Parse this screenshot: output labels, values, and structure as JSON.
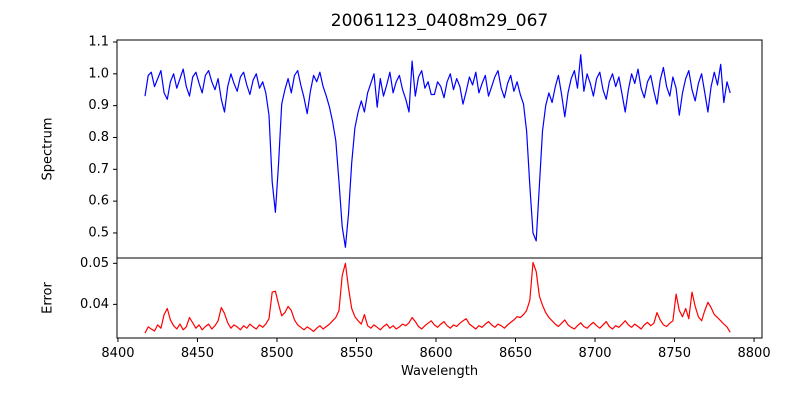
{
  "chart_data": {
    "type": "line",
    "title": "20061123_0408m29_067",
    "xlabel": "Wavelength",
    "grid": false,
    "legend": null,
    "background_color": "#ffffff",
    "axis_color": "#000000",
    "xlim": [
      8399.4,
      8805.0
    ],
    "xticks": [
      8400,
      8450,
      8500,
      8550,
      8600,
      8650,
      8700,
      8750,
      8800
    ],
    "xtick_labels": [
      "8400",
      "8450",
      "8500",
      "8550",
      "8600",
      "8650",
      "8700",
      "8750",
      "8800"
    ],
    "panels": [
      {
        "ylabel": "Spectrum",
        "ylim": [
          0.4213,
          1.1063
        ],
        "yticks": [
          0.5,
          0.6,
          0.7,
          0.8,
          0.9,
          1.0,
          1.1
        ],
        "ytick_labels": [
          "0.5",
          "0.6",
          "0.7",
          "0.8",
          "0.9",
          "1.0",
          "1.1"
        ],
        "line_color": "#0000ff",
        "series_name": "spectrum",
        "x_start": 8417,
        "x_step": 2,
        "y": [
          0.93,
          0.995,
          1.005,
          0.96,
          0.985,
          1.01,
          0.94,
          0.92,
          0.975,
          1.0,
          0.955,
          0.985,
          1.015,
          0.96,
          0.93,
          0.99,
          1.005,
          0.97,
          0.94,
          0.995,
          1.01,
          0.975,
          0.95,
          0.985,
          0.92,
          0.88,
          0.96,
          1.0,
          0.97,
          0.945,
          0.99,
          1.005,
          0.965,
          0.935,
          0.98,
          1.0,
          0.955,
          0.975,
          0.94,
          0.87,
          0.66,
          0.565,
          0.72,
          0.905,
          0.95,
          0.985,
          0.94,
          0.995,
          1.01,
          0.965,
          0.925,
          0.875,
          0.945,
          0.995,
          0.975,
          1.005,
          0.96,
          0.93,
          0.895,
          0.85,
          0.79,
          0.66,
          0.52,
          0.455,
          0.56,
          0.72,
          0.83,
          0.88,
          0.915,
          0.88,
          0.94,
          0.97,
          1.0,
          0.895,
          0.985,
          0.93,
          0.965,
          1.005,
          0.94,
          0.975,
          0.995,
          0.95,
          0.92,
          0.88,
          1.04,
          0.93,
          0.99,
          1.01,
          0.955,
          0.975,
          0.935,
          0.935,
          0.975,
          0.96,
          0.925,
          0.975,
          1.0,
          0.95,
          0.985,
          0.96,
          0.905,
          0.945,
          0.99,
          0.965,
          1.005,
          0.94,
          0.97,
          0.995,
          0.93,
          0.96,
          0.99,
          1.01,
          0.955,
          0.925,
          0.97,
          0.995,
          0.945,
          0.975,
          0.935,
          0.905,
          0.82,
          0.65,
          0.5,
          0.475,
          0.65,
          0.82,
          0.9,
          0.94,
          0.91,
          0.96,
          0.995,
          0.935,
          0.865,
          0.94,
          0.985,
          1.01,
          0.955,
          1.06,
          0.945,
          1.0,
          0.97,
          0.93,
          0.985,
          1.005,
          0.95,
          0.92,
          0.975,
          1.0,
          0.96,
          0.99,
          0.935,
          0.88,
          0.95,
          1.0,
          0.97,
          1.015,
          0.955,
          0.925,
          0.975,
          0.995,
          0.945,
          0.905,
          0.98,
          1.02,
          0.96,
          0.93,
          0.99,
          0.955,
          0.87,
          0.94,
          0.985,
          1.01,
          0.95,
          0.915,
          0.97,
          1.0,
          0.94,
          0.88,
          0.96,
          1.005,
          0.965,
          1.03,
          0.91,
          0.975,
          0.94
        ]
      },
      {
        "ylabel": "Error",
        "ylim": [
          0.0318,
          0.0513
        ],
        "yticks": [
          0.04,
          0.05
        ],
        "ytick_labels": [
          "0.04",
          "0.05"
        ],
        "line_color": "#ff0000",
        "series_name": "error",
        "x_start": 8417,
        "x_step": 2,
        "y": [
          0.033,
          0.0345,
          0.034,
          0.0335,
          0.035,
          0.0342,
          0.0375,
          0.039,
          0.0362,
          0.0348,
          0.034,
          0.0352,
          0.0338,
          0.0345,
          0.0368,
          0.0355,
          0.0342,
          0.035,
          0.0338,
          0.0346,
          0.0352,
          0.034,
          0.0348,
          0.036,
          0.0392,
          0.0378,
          0.0355,
          0.0342,
          0.035,
          0.0345,
          0.0338,
          0.0348,
          0.0342,
          0.0352,
          0.0345,
          0.034,
          0.035,
          0.0344,
          0.0352,
          0.0365,
          0.043,
          0.0432,
          0.04,
          0.0372,
          0.038,
          0.0395,
          0.0385,
          0.0362,
          0.035,
          0.0344,
          0.0338,
          0.0345,
          0.034,
          0.0334,
          0.0342,
          0.0348,
          0.034,
          0.0346,
          0.0352,
          0.036,
          0.0368,
          0.0385,
          0.047,
          0.05,
          0.044,
          0.039,
          0.037,
          0.036,
          0.0352,
          0.0375,
          0.0348,
          0.0342,
          0.035,
          0.0344,
          0.0338,
          0.0346,
          0.0352,
          0.0342,
          0.0348,
          0.034,
          0.0345,
          0.0352,
          0.0348,
          0.0355,
          0.0368,
          0.0358,
          0.0346,
          0.034,
          0.0348,
          0.0354,
          0.036,
          0.035,
          0.0344,
          0.0352,
          0.0358,
          0.0348,
          0.0342,
          0.035,
          0.0346,
          0.0354,
          0.036,
          0.0365,
          0.0352,
          0.0346,
          0.034,
          0.0348,
          0.0344,
          0.0352,
          0.0358,
          0.035,
          0.0344,
          0.0352,
          0.0348,
          0.0342,
          0.035,
          0.0356,
          0.0362,
          0.037,
          0.0368,
          0.0375,
          0.0385,
          0.041,
          0.0502,
          0.048,
          0.042,
          0.0398,
          0.038,
          0.0368,
          0.036,
          0.0352,
          0.0346,
          0.0354,
          0.0362,
          0.035,
          0.0344,
          0.034,
          0.0348,
          0.0355,
          0.0346,
          0.0342,
          0.035,
          0.0356,
          0.0348,
          0.0342,
          0.035,
          0.0358,
          0.0346,
          0.034,
          0.0348,
          0.0344,
          0.0352,
          0.036,
          0.035,
          0.0344,
          0.0352,
          0.0346,
          0.034,
          0.035,
          0.0356,
          0.0348,
          0.0354,
          0.038,
          0.0362,
          0.035,
          0.0346,
          0.0354,
          0.036,
          0.0425,
          0.0385,
          0.037,
          0.039,
          0.0365,
          0.043,
          0.0395,
          0.037,
          0.036,
          0.0385,
          0.0405,
          0.0392,
          0.0375,
          0.0368,
          0.036,
          0.0352,
          0.0345,
          0.0332
        ]
      }
    ]
  }
}
